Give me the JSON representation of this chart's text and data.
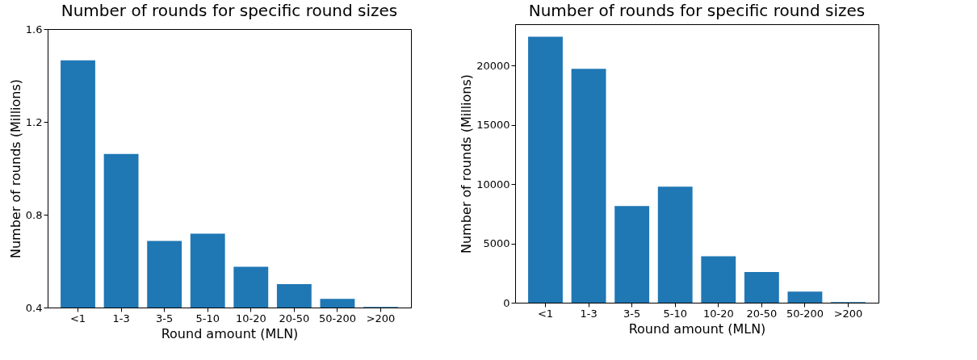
{
  "chart_data": [
    {
      "type": "bar",
      "title": "Number of rounds for specific round sizes",
      "xlabel": "Round amount (MLN)",
      "ylabel": "Number of rounds (Millions)",
      "categories": [
        "<1",
        "1-3",
        "3-5",
        "5-10",
        "10-20",
        "20-50",
        "50-200",
        ">200"
      ],
      "values": [
        1.465,
        1.062,
        0.687,
        0.718,
        0.576,
        0.501,
        0.437,
        0.403
      ],
      "color": "#1f77b4",
      "ylim": [
        0.4,
        1.6
      ],
      "yticks": [
        0.4,
        0.8,
        1.2,
        1.6
      ],
      "grid": false
    },
    {
      "type": "bar",
      "title": "Number of rounds for specific round sizes",
      "xlabel": "Round amount (MLN)",
      "ylabel": "Number of rounds (Millions)",
      "categories": [
        "<1",
        "1-3",
        "3-5",
        "5-10",
        "10-20",
        "20-50",
        "50-200",
        ">200"
      ],
      "values": [
        22450,
        19740,
        8150,
        9800,
        3910,
        2580,
        930,
        50
      ],
      "color": "#1f77b4",
      "ylim": [
        0,
        23500
      ],
      "yticks": [
        0,
        5000,
        10000,
        15000,
        20000
      ],
      "grid": false
    }
  ]
}
